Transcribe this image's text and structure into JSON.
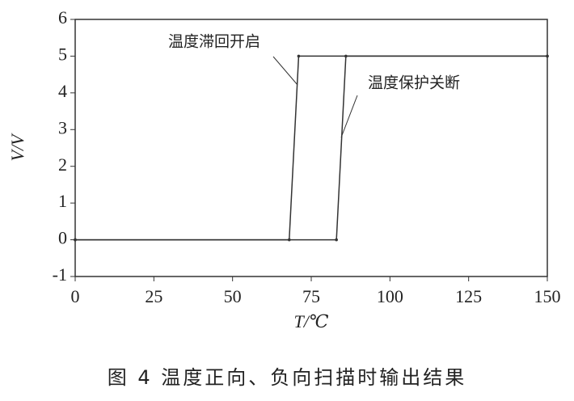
{
  "chart_data": {
    "type": "line",
    "title": "图 4   温度正向、负向扫描时输出结果",
    "x_label": "T/℃",
    "y_label": "V/V",
    "xlim": [
      0,
      150
    ],
    "xticks": [
      0,
      25,
      50,
      75,
      100,
      125,
      150
    ],
    "ylim": [
      -1,
      6
    ],
    "yticks": [
      -1,
      0,
      1,
      2,
      3,
      4,
      5,
      6
    ],
    "series": [
      {
        "name": "温度滞回开启",
        "color": "#333333",
        "x": [
          0,
          68,
          71,
          150
        ],
        "values": [
          0,
          0,
          5,
          5
        ]
      },
      {
        "name": "温度保护关断",
        "color": "#333333",
        "x": [
          0,
          83,
          86,
          150
        ],
        "values": [
          0,
          0,
          5,
          5
        ]
      }
    ]
  }
}
